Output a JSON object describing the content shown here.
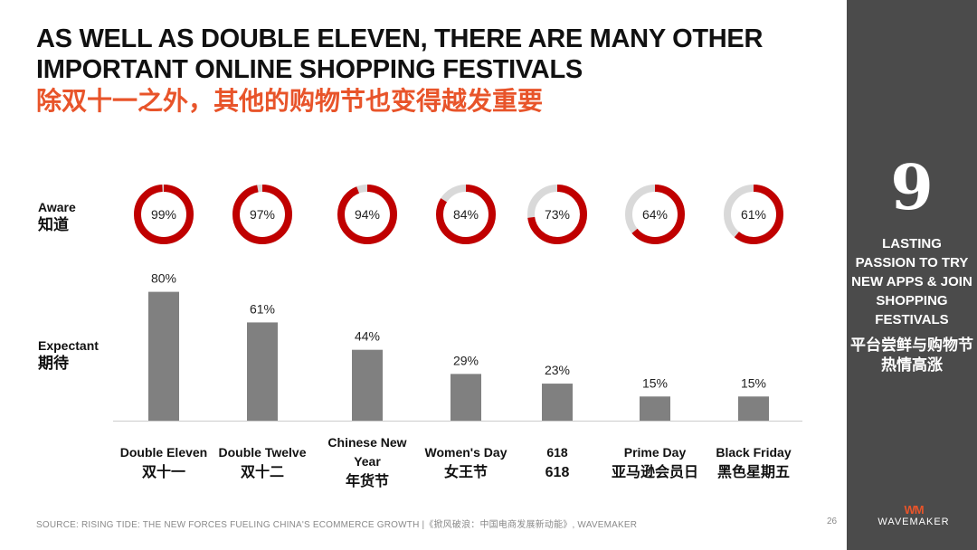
{
  "title": {
    "en": "AS WELL AS DOUBLE ELEVEN, THERE ARE MANY OTHER IMPORTANT ONLINE SHOPPING FESTIVALS",
    "cn": "除双十一之外，其他的购物节也变得越发重要"
  },
  "labels": {
    "aware_en": "Aware",
    "aware_cn": "知道",
    "expectant_en": "Expectant",
    "expectant_cn": "期待"
  },
  "sidebar": {
    "number": "9",
    "en": "LASTING PASSION TO TRY NEW APPS & JOIN SHOPPING FESTIVALS",
    "cn": "平台尝鲜与购物节热情高涨"
  },
  "footer": {
    "source": "SOURCE: RISING TIDE: THE NEW FORCES FUELING CHINA'S ECOMMERCE GROWTH |《掀风破浪：中国电商发展新动能》, WAVEMAKER",
    "page": "26",
    "logo_mark": "WM",
    "logo_name": "WAVEMAKER"
  },
  "colors": {
    "donut_fill": "#c00000",
    "donut_track": "#d9d9d9",
    "bar": "#808080",
    "title_cn": "#e8542a",
    "sidebar_bg": "#4b4b4b"
  },
  "chart_data": [
    {
      "type": "pie",
      "subtype": "donut",
      "name": "Aware 知道",
      "categories": [
        "Double Eleven 双十一",
        "Double Twelve 双十二",
        "Chinese New Year 年货节",
        "Women's Day 女王节",
        "618",
        "Prime Day 亚马逊会员日",
        "Black Friday 黑色星期五"
      ],
      "values": [
        99,
        97,
        94,
        84,
        73,
        64,
        61
      ],
      "value_labels": [
        "99%",
        "97%",
        "94%",
        "84%",
        "73%",
        "64%",
        "61%"
      ],
      "unit": "%"
    },
    {
      "type": "bar",
      "name": "Expectant 期待",
      "categories_en": [
        "Double Eleven",
        "Double Twelve",
        "Chinese New Year",
        "Women's Day",
        "618",
        "Prime Day",
        "Black Friday"
      ],
      "categories_cn": [
        "双十一",
        "双十二",
        "年货节",
        "女王节",
        "618",
        "亚马逊会员日",
        "黑色星期五"
      ],
      "values": [
        80,
        61,
        44,
        29,
        23,
        15,
        15
      ],
      "value_labels": [
        "80%",
        "61%",
        "44%",
        "29%",
        "23%",
        "15%",
        "15%"
      ],
      "unit": "%",
      "ylim": [
        0,
        100
      ],
      "grid": false,
      "legend": "none"
    }
  ]
}
